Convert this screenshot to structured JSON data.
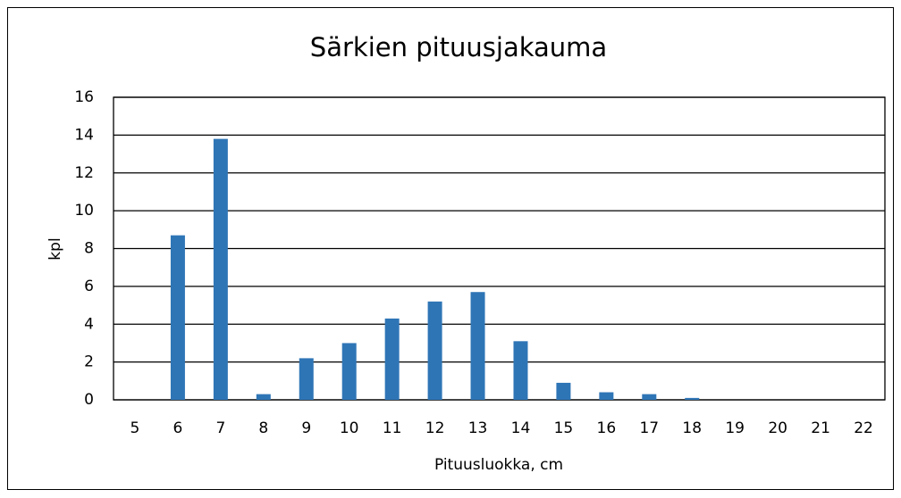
{
  "chart_data": {
    "type": "bar",
    "title": "Särkien pituusjakauma",
    "x_label": "Pituusluokka, cm",
    "y_label": "kpl",
    "categories": [
      "5",
      "6",
      "7",
      "8",
      "9",
      "10",
      "11",
      "12",
      "13",
      "14",
      "15",
      "16",
      "17",
      "18",
      "19",
      "20",
      "21",
      "22"
    ],
    "values": [
      0,
      8.7,
      13.8,
      0.3,
      2.2,
      3.0,
      4.3,
      5.2,
      5.7,
      3.1,
      0.9,
      0.4,
      0.3,
      0.1,
      0,
      0,
      0,
      0
    ],
    "color": "#2e75b6",
    "ylim": [
      0,
      16
    ],
    "yticks": [
      0,
      2,
      4,
      6,
      8,
      10,
      12,
      14,
      16
    ],
    "grid": true
  }
}
